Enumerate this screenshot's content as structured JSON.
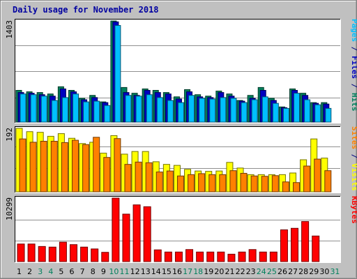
{
  "chart_data": {
    "type": "bar",
    "title": "Daily usage for November 2018",
    "categories": [
      "1",
      "2",
      "3",
      "4",
      "5",
      "6",
      "7",
      "8",
      "9",
      "10",
      "11",
      "12",
      "13",
      "14",
      "15",
      "16",
      "17",
      "18",
      "19",
      "20",
      "21",
      "22",
      "23",
      "24",
      "25",
      "26",
      "27",
      "28",
      "29",
      "30",
      "31"
    ],
    "weekend_categories": [
      "3",
      "4",
      "10",
      "11",
      "17",
      "18",
      "24",
      "25",
      "31"
    ],
    "panels": [
      {
        "id": "hits",
        "max_label": "1403",
        "ymax": 1403,
        "legend": [
          {
            "text": "Pages",
            "color": "#00c0ff"
          },
          {
            "text": " / ",
            "color": "#000080"
          },
          {
            "text": "Files",
            "color": "#0000c0"
          },
          {
            "text": " / ",
            "color": "#000080"
          },
          {
            "text": "Hits",
            "color": "#00805c"
          }
        ],
        "series": [
          {
            "name": "Hits",
            "color": "#00805c",
            "values": [
              440,
              420,
              410,
              390,
              490,
              440,
              330,
              370,
              280,
              1403,
              480,
              400,
              460,
              440,
              410,
              350,
              450,
              380,
              360,
              430,
              390,
              300,
              370,
              480,
              330,
              210,
              460,
              400,
              270,
              270,
              null
            ]
          },
          {
            "name": "Files",
            "color": "#0000c0",
            "values": [
              410,
              400,
              380,
              360,
              460,
              420,
              310,
              340,
              270,
              1390,
              410,
              370,
              440,
              410,
              390,
              320,
              420,
              350,
              340,
              410,
              360,
              290,
              330,
              440,
              300,
              200,
              440,
              370,
              260,
              250,
              null
            ]
          },
          {
            "name": "Pages",
            "color": "#00c0ff",
            "values": [
              390,
              380,
              360,
              300,
              340,
              390,
              280,
              290,
              230,
              1340,
              370,
              360,
              380,
              340,
              300,
              270,
              370,
              330,
              320,
              340,
              330,
              270,
              310,
              350,
              260,
              190,
              400,
              310,
              240,
              190,
              null
            ]
          }
        ]
      },
      {
        "id": "visits",
        "max_label": "192",
        "ymax": 192,
        "legend": [
          {
            "text": "Sites",
            "color": "#ff8000"
          },
          {
            "text": " / ",
            "color": "#000080"
          },
          {
            "text": "Visits",
            "color": "#ffff00"
          }
        ],
        "series": [
          {
            "name": "Visits",
            "color": "#ffff00",
            "values": [
              192,
              182,
              180,
              168,
              176,
              162,
              146,
              150,
              117,
              170,
              114,
              122,
              122,
              91,
              83,
              80,
              68,
              63,
              62,
              63,
              89,
              72,
              52,
              52,
              52,
              52,
              57,
              97,
              160,
              102,
              null
            ]
          },
          {
            "name": "Sites",
            "color": "#ff8000",
            "values": [
              160,
              150,
              153,
              153,
              149,
              156,
              143,
              165,
              104,
              161,
              83,
              90,
              88,
              60,
              63,
              48,
              52,
              55,
              52,
              52,
              64,
              56,
              48,
              47,
              49,
              30,
              28,
              78,
              99,
              64,
              null
            ]
          }
        ]
      },
      {
        "id": "kbytes",
        "max_label": "10299",
        "ymax": 10299,
        "legend": [
          {
            "text": "KBytes",
            "color": "#ff0000"
          }
        ],
        "series": [
          {
            "name": "KBytes",
            "color": "#ff0000",
            "values": [
              2850,
              2850,
              2450,
              2350,
              3150,
              2750,
              2350,
              2050,
              1500,
              10299,
              7700,
              9200,
              8900,
              1900,
              1550,
              1550,
              1950,
              1550,
              1550,
              1550,
              1200,
              1550,
              1950,
              1550,
              1550,
              5150,
              5400,
              6500,
              4150,
              null,
              null
            ]
          }
        ]
      }
    ]
  }
}
